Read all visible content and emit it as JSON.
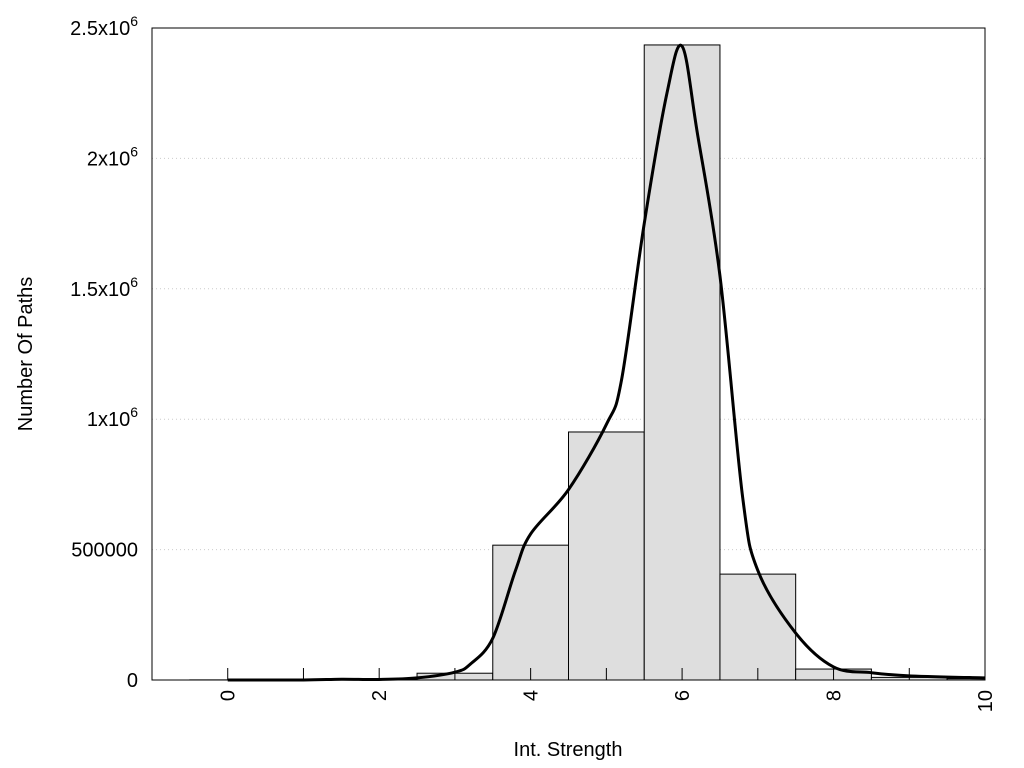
{
  "chart_data": {
    "type": "bar",
    "title": "",
    "xlabel": "Int. Strength",
    "ylabel": "Number Of Paths",
    "xlim": [
      -1,
      10
    ],
    "ylim": [
      0,
      2500000
    ],
    "grid": true,
    "x_ticks": [
      0,
      2,
      4,
      6,
      8,
      10
    ],
    "x_minor_ticks": [
      1,
      3,
      5,
      7,
      9
    ],
    "y_ticks": [
      {
        "value": 0,
        "label": "0",
        "exp": ""
      },
      {
        "value": 500000,
        "label": "500000",
        "exp": ""
      },
      {
        "value": 1000000,
        "label": "1x10",
        "exp": "6"
      },
      {
        "value": 1500000,
        "label": "1.5x10",
        "exp": "6"
      },
      {
        "value": 2000000,
        "label": "2x10",
        "exp": "6"
      },
      {
        "value": 2500000,
        "label": "2.5x10",
        "exp": "6"
      }
    ],
    "bars": {
      "x": [
        0,
        1,
        2,
        3,
        4,
        5,
        6,
        7,
        8,
        9,
        10
      ],
      "values": [
        500,
        800,
        1500,
        26000,
        517000,
        951000,
        2435000,
        406000,
        42000,
        10000,
        5000
      ],
      "fill": "#dedede",
      "stroke": "#000000"
    },
    "curve": {
      "color": "#000000",
      "x": [
        0,
        1,
        1.5,
        2,
        2.5,
        3,
        3.2,
        3.5,
        3.8,
        4,
        4.5,
        5,
        5.2,
        5.5,
        5.8,
        6,
        6.2,
        6.5,
        6.8,
        7,
        7.5,
        8,
        8.5,
        9,
        10
      ],
      "y": [
        0,
        0,
        3000,
        2000,
        8000,
        30000,
        60000,
        160000,
        420000,
        560000,
        730000,
        980000,
        1150000,
        1750000,
        2250000,
        2430000,
        2100000,
        1550000,
        700000,
        420000,
        180000,
        50000,
        28000,
        16000,
        8000
      ]
    }
  }
}
